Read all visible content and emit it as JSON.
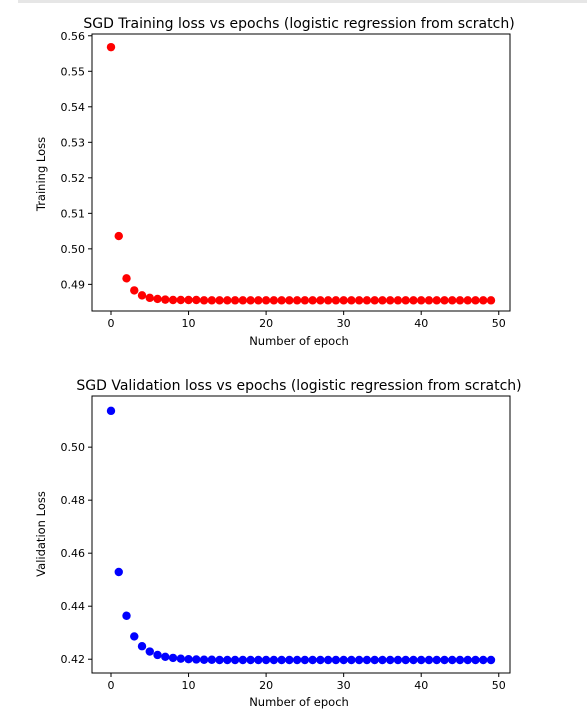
{
  "chart_data": [
    {
      "type": "scatter",
      "title": "SGD Training loss vs epochs (logistic regression from scratch)",
      "xlabel": "Number of epoch",
      "ylabel": "Training Loss",
      "xlim": [
        -2.45,
        51.45
      ],
      "ylim": [
        0.4825,
        0.5605
      ],
      "xticks": [
        0,
        10,
        20,
        30,
        40,
        50
      ],
      "yticks": [
        0.49,
        0.5,
        0.51,
        0.52,
        0.53,
        0.54,
        0.55,
        0.56
      ],
      "xtick_labels": [
        "0",
        "10",
        "20",
        "30",
        "40",
        "50"
      ],
      "ytick_labels": [
        "0.49",
        "0.50",
        "0.51",
        "0.52",
        "0.53",
        "0.54",
        "0.55",
        "0.56"
      ],
      "color": "#ff0000",
      "series": [
        {
          "x": [
            0,
            1,
            2,
            3,
            4,
            5,
            6,
            7,
            8,
            9,
            10,
            11,
            12,
            13,
            14,
            15,
            16,
            17,
            18,
            19,
            20,
            21,
            22,
            23,
            24,
            25,
            26,
            27,
            28,
            29,
            30,
            31,
            32,
            33,
            34,
            35,
            36,
            37,
            38,
            39,
            40,
            41,
            42,
            43,
            44,
            45,
            46,
            47,
            48,
            49
          ],
          "values": [
            0.5568,
            0.5036,
            0.4917,
            0.4883,
            0.4869,
            0.4862,
            0.4859,
            0.4857,
            0.4856,
            0.4856,
            0.4856,
            0.4856,
            0.4855,
            0.4855,
            0.4855,
            0.4855,
            0.4855,
            0.4855,
            0.4855,
            0.4855,
            0.4855,
            0.4855,
            0.4855,
            0.4855,
            0.4855,
            0.4855,
            0.4855,
            0.4855,
            0.4855,
            0.4855,
            0.4855,
            0.4855,
            0.4855,
            0.4855,
            0.4855,
            0.4855,
            0.4855,
            0.4855,
            0.4855,
            0.4855,
            0.4855,
            0.4855,
            0.4855,
            0.4855,
            0.4855,
            0.4855,
            0.4855,
            0.4855,
            0.4855,
            0.4855
          ]
        }
      ]
    },
    {
      "type": "scatter",
      "title": "SGD Validation loss vs epochs (logistic regression from scratch)",
      "xlabel": "Number of epoch",
      "ylabel": "Validation Loss",
      "xlim": [
        -2.45,
        51.45
      ],
      "ylim": [
        0.4148,
        0.5193
      ],
      "xticks": [
        0,
        10,
        20,
        30,
        40,
        50
      ],
      "yticks": [
        0.42,
        0.44,
        0.46,
        0.48,
        0.5
      ],
      "xtick_labels": [
        "0",
        "10",
        "20",
        "30",
        "40",
        "50"
      ],
      "ytick_labels": [
        "0.42",
        "0.44",
        "0.46",
        "0.48",
        "0.50"
      ],
      "color": "#0000ff",
      "series": [
        {
          "x": [
            0,
            1,
            2,
            3,
            4,
            5,
            6,
            7,
            8,
            9,
            10,
            11,
            12,
            13,
            14,
            15,
            16,
            17,
            18,
            19,
            20,
            21,
            22,
            23,
            24,
            25,
            26,
            27,
            28,
            29,
            30,
            31,
            32,
            33,
            34,
            35,
            36,
            37,
            38,
            39,
            40,
            41,
            42,
            43,
            44,
            45,
            46,
            47,
            48,
            49
          ],
          "values": [
            0.5137,
            0.4529,
            0.4364,
            0.4286,
            0.4249,
            0.4229,
            0.4216,
            0.4209,
            0.4205,
            0.4202,
            0.42,
            0.4199,
            0.4198,
            0.4198,
            0.4197,
            0.4197,
            0.4197,
            0.4197,
            0.4197,
            0.4197,
            0.4197,
            0.4197,
            0.4197,
            0.4197,
            0.4197,
            0.4197,
            0.4197,
            0.4197,
            0.4197,
            0.4197,
            0.4197,
            0.4197,
            0.4197,
            0.4197,
            0.4197,
            0.4197,
            0.4197,
            0.4197,
            0.4197,
            0.4197,
            0.4197,
            0.4197,
            0.4197,
            0.4197,
            0.4197,
            0.4197,
            0.4197,
            0.4197,
            0.4197,
            0.4197
          ]
        }
      ]
    }
  ]
}
